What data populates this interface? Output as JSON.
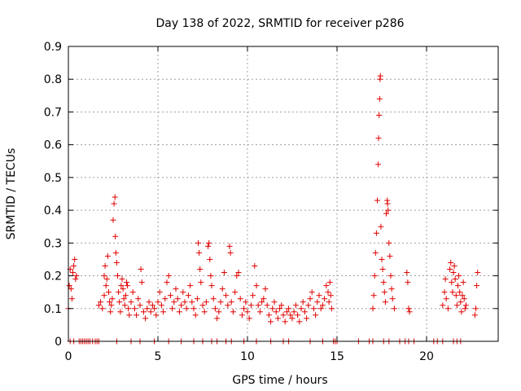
{
  "chart_data": {
    "type": "scatter",
    "title": "Day 138 of 2022, SRMTID for receiver p286",
    "xlabel": "GPS time / hours",
    "ylabel": "SRMTID / TECUs",
    "xlim": [
      0,
      24
    ],
    "ylim": [
      0,
      0.9
    ],
    "x_ticks": [
      "0",
      "5",
      "10",
      "15",
      "20"
    ],
    "y_ticks": [
      "0",
      "0.1",
      "0.2",
      "0.3",
      "0.4",
      "0.5",
      "0.6",
      "0.7",
      "0.8",
      "0.9"
    ],
    "grid": true,
    "marker": "plus",
    "marker_color": "#e00000",
    "series": [
      {
        "values": [
          [
            0.0,
            0.1
          ],
          [
            0.05,
            0.17
          ],
          [
            0.1,
            0.22
          ],
          [
            0.15,
            0.16
          ],
          [
            0.2,
            0.13
          ],
          [
            0.25,
            0.21
          ],
          [
            0.3,
            0.23
          ],
          [
            0.35,
            0.25
          ],
          [
            0.4,
            0.19
          ],
          [
            0.45,
            0.2
          ],
          [
            0.1,
            0.0
          ],
          [
            0.3,
            0.0
          ],
          [
            0.6,
            0.0
          ],
          [
            0.7,
            0.0
          ],
          [
            0.8,
            0.0
          ],
          [
            0.9,
            0.0
          ],
          [
            1.0,
            0.0
          ],
          [
            1.1,
            0.0
          ],
          [
            1.2,
            0.0
          ],
          [
            1.35,
            0.0
          ],
          [
            1.5,
            0.0
          ],
          [
            1.6,
            0.0
          ],
          [
            1.7,
            0.0
          ],
          [
            1.7,
            0.11
          ],
          [
            1.8,
            0.12
          ],
          [
            1.9,
            0.1
          ],
          [
            2.0,
            0.14
          ],
          [
            2.0,
            0.2
          ],
          [
            2.05,
            0.23
          ],
          [
            2.1,
            0.17
          ],
          [
            2.15,
            0.19
          ],
          [
            2.2,
            0.26
          ],
          [
            2.25,
            0.15
          ],
          [
            2.3,
            0.12
          ],
          [
            2.35,
            0.09
          ],
          [
            2.4,
            0.11
          ],
          [
            2.45,
            0.13
          ],
          [
            2.5,
            0.37
          ],
          [
            2.55,
            0.42
          ],
          [
            2.6,
            0.44
          ],
          [
            2.62,
            0.32
          ],
          [
            2.65,
            0.27
          ],
          [
            2.7,
            0.24
          ],
          [
            2.75,
            0.2
          ],
          [
            2.8,
            0.15
          ],
          [
            2.85,
            0.12
          ],
          [
            2.9,
            0.09
          ],
          [
            2.95,
            0.17
          ],
          [
            3.0,
            0.19
          ],
          [
            3.05,
            0.16
          ],
          [
            3.1,
            0.13
          ],
          [
            3.15,
            0.11
          ],
          [
            3.2,
            0.14
          ],
          [
            3.25,
            0.18
          ],
          [
            3.3,
            0.17
          ],
          [
            3.35,
            0.1
          ],
          [
            3.4,
            0.08
          ],
          [
            3.5,
            0.12
          ],
          [
            3.6,
            0.15
          ],
          [
            3.7,
            0.1
          ],
          [
            3.8,
            0.08
          ],
          [
            3.9,
            0.13
          ],
          [
            4.0,
            0.11
          ],
          [
            4.05,
            0.22
          ],
          [
            4.1,
            0.18
          ],
          [
            4.2,
            0.09
          ],
          [
            4.3,
            0.07
          ],
          [
            4.4,
            0.1
          ],
          [
            4.5,
            0.12
          ],
          [
            4.6,
            0.09
          ],
          [
            4.7,
            0.11
          ],
          [
            4.8,
            0.1
          ],
          [
            4.9,
            0.08
          ],
          [
            2.7,
            0.0
          ],
          [
            3.5,
            0.0
          ],
          [
            4.0,
            0.0
          ],
          [
            4.8,
            0.0
          ],
          [
            5.0,
            0.12
          ],
          [
            5.1,
            0.15
          ],
          [
            5.2,
            0.11
          ],
          [
            5.3,
            0.09
          ],
          [
            5.4,
            0.13
          ],
          [
            5.5,
            0.18
          ],
          [
            5.6,
            0.2
          ],
          [
            5.7,
            0.14
          ],
          [
            5.8,
            0.1
          ],
          [
            5.9,
            0.12
          ],
          [
            6.0,
            0.16
          ],
          [
            6.1,
            0.13
          ],
          [
            6.2,
            0.09
          ],
          [
            6.3,
            0.11
          ],
          [
            6.4,
            0.15
          ],
          [
            6.5,
            0.12
          ],
          [
            6.6,
            0.1
          ],
          [
            6.7,
            0.14
          ],
          [
            6.8,
            0.17
          ],
          [
            6.9,
            0.12
          ],
          [
            7.0,
            0.1
          ],
          [
            7.1,
            0.08
          ],
          [
            7.2,
            0.13
          ],
          [
            7.25,
            0.3
          ],
          [
            7.3,
            0.27
          ],
          [
            7.35,
            0.22
          ],
          [
            7.4,
            0.18
          ],
          [
            7.5,
            0.11
          ],
          [
            7.6,
            0.09
          ],
          [
            7.7,
            0.12
          ],
          [
            7.8,
            0.29
          ],
          [
            7.85,
            0.3
          ],
          [
            7.9,
            0.25
          ],
          [
            7.95,
            0.2
          ],
          [
            8.0,
            0.17
          ],
          [
            8.1,
            0.13
          ],
          [
            8.2,
            0.1
          ],
          [
            8.3,
            0.07
          ],
          [
            8.4,
            0.09
          ],
          [
            8.5,
            0.12
          ],
          [
            5.6,
            0.0
          ],
          [
            6.3,
            0.0
          ],
          [
            7.0,
            0.0
          ],
          [
            7.5,
            0.0
          ],
          [
            8.0,
            0.0
          ],
          [
            8.3,
            0.0
          ],
          [
            8.6,
            0.16
          ],
          [
            8.7,
            0.21
          ],
          [
            8.8,
            0.14
          ],
          [
            8.9,
            0.11
          ],
          [
            9.0,
            0.29
          ],
          [
            9.05,
            0.27
          ],
          [
            9.1,
            0.12
          ],
          [
            9.2,
            0.09
          ],
          [
            9.3,
            0.15
          ],
          [
            9.4,
            0.2
          ],
          [
            9.5,
            0.21
          ],
          [
            9.6,
            0.13
          ],
          [
            9.7,
            0.08
          ],
          [
            9.8,
            0.1
          ],
          [
            9.9,
            0.12
          ],
          [
            10.0,
            0.09
          ],
          [
            10.1,
            0.07
          ],
          [
            10.2,
            0.11
          ],
          [
            10.3,
            0.14
          ],
          [
            10.4,
            0.23
          ],
          [
            10.5,
            0.17
          ],
          [
            10.6,
            0.11
          ],
          [
            10.7,
            0.09
          ],
          [
            10.8,
            0.12
          ],
          [
            10.9,
            0.13
          ],
          [
            11.0,
            0.16
          ],
          [
            11.1,
            0.11
          ],
          [
            11.2,
            0.08
          ],
          [
            11.3,
            0.06
          ],
          [
            11.4,
            0.1
          ],
          [
            11.5,
            0.12
          ],
          [
            11.6,
            0.09
          ],
          [
            11.7,
            0.07
          ],
          [
            11.8,
            0.1
          ],
          [
            11.9,
            0.11
          ],
          [
            12.0,
            0.08
          ],
          [
            12.1,
            0.06
          ],
          [
            12.2,
            0.09
          ],
          [
            12.3,
            0.1
          ],
          [
            12.4,
            0.08
          ],
          [
            8.8,
            0.0
          ],
          [
            9.1,
            0.0
          ],
          [
            9.8,
            0.0
          ],
          [
            10.5,
            0.0
          ],
          [
            11.3,
            0.0
          ],
          [
            12.0,
            0.0
          ],
          [
            12.3,
            0.0
          ],
          [
            12.5,
            0.07
          ],
          [
            12.6,
            0.09
          ],
          [
            12.7,
            0.11
          ],
          [
            12.8,
            0.08
          ],
          [
            12.9,
            0.06
          ],
          [
            13.0,
            0.1
          ],
          [
            13.1,
            0.12
          ],
          [
            13.2,
            0.09
          ],
          [
            13.3,
            0.07
          ],
          [
            13.4,
            0.11
          ],
          [
            13.5,
            0.13
          ],
          [
            13.6,
            0.15
          ],
          [
            13.7,
            0.1
          ],
          [
            13.8,
            0.08
          ],
          [
            13.9,
            0.12
          ],
          [
            14.0,
            0.14
          ],
          [
            14.1,
            0.1
          ],
          [
            14.2,
            0.11
          ],
          [
            14.3,
            0.13
          ],
          [
            14.4,
            0.17
          ],
          [
            14.5,
            0.15
          ],
          [
            14.55,
            0.12
          ],
          [
            14.6,
            0.18
          ],
          [
            14.65,
            0.14
          ],
          [
            14.7,
            0.1
          ],
          [
            13.5,
            0.0
          ],
          [
            14.2,
            0.0
          ],
          [
            14.8,
            0.0
          ],
          [
            14.9,
            0.0
          ],
          [
            15.0,
            0.0
          ],
          [
            16.2,
            0.0
          ],
          [
            16.8,
            0.0
          ],
          [
            17.0,
            0.0
          ],
          [
            17.0,
            0.1
          ],
          [
            17.05,
            0.14
          ],
          [
            17.1,
            0.2
          ],
          [
            17.15,
            0.27
          ],
          [
            17.2,
            0.33
          ],
          [
            17.25,
            0.43
          ],
          [
            17.3,
            0.54
          ],
          [
            17.32,
            0.62
          ],
          [
            17.35,
            0.69
          ],
          [
            17.38,
            0.74
          ],
          [
            17.4,
            0.8
          ],
          [
            17.42,
            0.81
          ],
          [
            17.45,
            0.35
          ],
          [
            17.5,
            0.25
          ],
          [
            17.55,
            0.22
          ],
          [
            17.6,
            0.18
          ],
          [
            17.65,
            0.15
          ],
          [
            17.7,
            0.12
          ],
          [
            17.75,
            0.39
          ],
          [
            17.8,
            0.43
          ],
          [
            17.82,
            0.42
          ],
          [
            17.85,
            0.4
          ],
          [
            17.9,
            0.3
          ],
          [
            17.95,
            0.26
          ],
          [
            18.0,
            0.2
          ],
          [
            18.05,
            0.16
          ],
          [
            18.1,
            0.13
          ],
          [
            18.2,
            0.1
          ],
          [
            17.6,
            0.0
          ],
          [
            17.9,
            0.0
          ],
          [
            18.5,
            0.0
          ],
          [
            18.8,
            0.0
          ],
          [
            19.0,
            0.0
          ],
          [
            19.3,
            0.0
          ],
          [
            18.9,
            0.21
          ],
          [
            18.95,
            0.18
          ],
          [
            19.0,
            0.1
          ],
          [
            19.05,
            0.09
          ],
          [
            20.4,
            0.0
          ],
          [
            20.6,
            0.0
          ],
          [
            20.9,
            0.0
          ],
          [
            21.5,
            0.0
          ],
          [
            21.7,
            0.0
          ],
          [
            21.9,
            0.0
          ],
          [
            20.9,
            0.11
          ],
          [
            21.0,
            0.15
          ],
          [
            21.05,
            0.19
          ],
          [
            21.1,
            0.13
          ],
          [
            21.2,
            0.1
          ],
          [
            21.3,
            0.22
          ],
          [
            21.35,
            0.24
          ],
          [
            21.4,
            0.18
          ],
          [
            21.45,
            0.15
          ],
          [
            21.5,
            0.21
          ],
          [
            21.55,
            0.23
          ],
          [
            21.6,
            0.19
          ],
          [
            21.65,
            0.14
          ],
          [
            21.7,
            0.11
          ],
          [
            21.75,
            0.17
          ],
          [
            21.8,
            0.2
          ],
          [
            21.85,
            0.15
          ],
          [
            21.9,
            0.12
          ],
          [
            21.95,
            0.09
          ],
          [
            22.0,
            0.14
          ],
          [
            22.05,
            0.18
          ],
          [
            22.1,
            0.13
          ],
          [
            22.15,
            0.1
          ],
          [
            22.2,
            0.11
          ],
          [
            22.7,
            0.08
          ],
          [
            22.75,
            0.1
          ],
          [
            22.8,
            0.17
          ],
          [
            22.85,
            0.21
          ]
        ]
      }
    ]
  }
}
